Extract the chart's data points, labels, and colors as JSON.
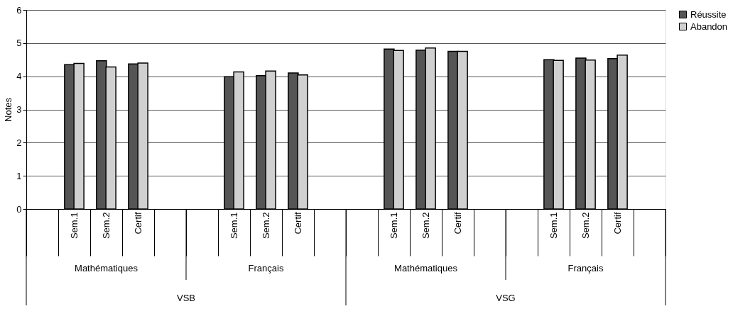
{
  "chart_data": {
    "type": "bar",
    "ylabel": "Notes",
    "categories": [
      null,
      "Sem.1",
      "Sem.2",
      "Certif",
      null,
      null,
      "Sem.1",
      "Sem.2",
      "Certif",
      null,
      null,
      "Sem.1",
      "Sem.2",
      "Certif",
      null,
      null,
      "Sem.1",
      "Sem.2",
      "Certif",
      null
    ],
    "series": [
      {
        "name": "Réussite",
        "color": "#555555",
        "values": [
          null,
          4.35,
          4.47,
          4.37,
          null,
          null,
          3.99,
          4.02,
          4.1,
          null,
          null,
          4.82,
          4.79,
          4.75,
          null,
          null,
          4.5,
          4.55,
          4.53,
          null
        ]
      },
      {
        "name": "Abandon",
        "color": "#d0d0d0",
        "values": [
          null,
          4.39,
          4.28,
          4.4,
          null,
          null,
          4.13,
          4.16,
          4.04,
          null,
          null,
          4.78,
          4.85,
          4.75,
          null,
          null,
          4.48,
          4.49,
          4.64,
          null
        ]
      }
    ],
    "ylim": [
      0,
      6
    ],
    "yticks": [
      0,
      1,
      2,
      3,
      4,
      5,
      6
    ],
    "grid": "y",
    "legend": "right",
    "annotations": [
      "Mathématiques",
      "Français",
      "Mathématiques",
      "Français",
      "VSB",
      "VSG"
    ]
  }
}
